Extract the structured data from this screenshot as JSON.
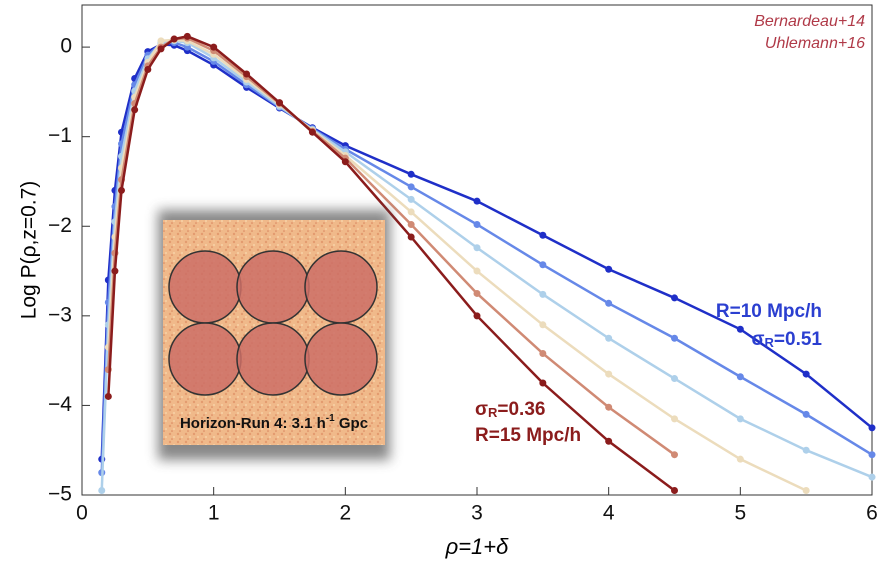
{
  "chart_data": {
    "type": "line",
    "x_label": "ρ=1+δ",
    "y_label": "Log P(ρ,z=0.7)",
    "xlim": [
      0,
      6
    ],
    "ylim": [
      -5,
      0.47
    ],
    "xticks": [
      0,
      1,
      2,
      3,
      4,
      5,
      6
    ],
    "yticks": [
      {
        "value": -5,
        "label": "−5"
      },
      {
        "value": -4,
        "label": "−4"
      },
      {
        "value": -3,
        "label": "−3"
      },
      {
        "value": -2,
        "label": "−2"
      },
      {
        "value": -1,
        "label": "−1"
      },
      0
    ],
    "x": [
      0.15,
      0.2,
      0.25,
      0.3,
      0.4,
      0.5,
      0.6,
      0.7,
      0.8,
      1.0,
      1.25,
      1.5,
      1.75,
      2,
      2.5,
      3,
      3.5,
      4,
      4.5,
      5,
      5.5,
      6
    ],
    "series": [
      {
        "color": "#1f2fc8",
        "values": [
          -4.6,
          -2.6,
          -1.6,
          -0.95,
          -0.35,
          -0.05,
          0.03,
          0.02,
          -0.04,
          -0.2,
          -0.45,
          -0.68,
          -0.9,
          -1.1,
          -1.42,
          -1.72,
          -2.1,
          -2.48,
          -2.8,
          -3.15,
          -3.65,
          -4.25
        ]
      },
      {
        "color": "#6688e8",
        "values": [
          -4.75,
          -2.85,
          -1.78,
          -1.08,
          -0.42,
          -0.09,
          0.04,
          0.05,
          0.0,
          -0.16,
          -0.42,
          -0.67,
          -0.91,
          -1.14,
          -1.56,
          -1.98,
          -2.43,
          -2.86,
          -3.25,
          -3.68,
          -4.1,
          -4.55
        ]
      },
      {
        "color": "#aed0ea",
        "values": [
          -4.95,
          -3.1,
          -1.95,
          -1.22,
          -0.49,
          -0.13,
          0.05,
          0.07,
          0.05,
          -0.12,
          -0.39,
          -0.66,
          -0.92,
          -1.17,
          -1.7,
          -2.24,
          -2.76,
          -3.25,
          -3.7,
          -4.15,
          -4.5,
          -4.8
        ]
      },
      {
        "color": "#ecdcbc",
        "values": [
          null,
          -3.35,
          -2.12,
          -1.35,
          -0.56,
          -0.17,
          0.07,
          0.08,
          0.07,
          -0.08,
          -0.36,
          -0.64,
          -0.93,
          -1.21,
          -1.84,
          -2.5,
          -3.1,
          -3.65,
          -4.15,
          -4.6,
          -4.95,
          null
        ]
      },
      {
        "color": "#d08a74",
        "values": [
          null,
          -3.6,
          -2.3,
          -1.48,
          -0.63,
          -0.21,
          0.0,
          0.09,
          0.1,
          -0.04,
          -0.33,
          -0.63,
          -0.94,
          -1.24,
          -1.98,
          -2.75,
          -3.42,
          -4.02,
          -4.55,
          null,
          null,
          null
        ]
      },
      {
        "color": "#8b1c1c",
        "values": [
          null,
          -3.9,
          -2.5,
          -1.6,
          -0.7,
          -0.25,
          -0.02,
          0.09,
          0.12,
          0.0,
          -0.3,
          -0.62,
          -0.95,
          -1.28,
          -2.12,
          -3.0,
          -3.75,
          -4.4,
          -4.95,
          null,
          null,
          null
        ]
      }
    ],
    "annotations": {
      "refs": [
        "Bernardeau+14",
        "Uhlemann+16"
      ],
      "blue_R": "R=10 Mpc/h",
      "blue_sigma": [
        "σ",
        "R",
        "=0.51"
      ],
      "red_sigma": [
        "σ",
        "R",
        "=0.36"
      ],
      "red_R": "R=15 Mpc/h"
    },
    "inset_label": [
      "Horizon-Run 4: 3.1 h",
      "-1",
      " Gpc"
    ]
  }
}
